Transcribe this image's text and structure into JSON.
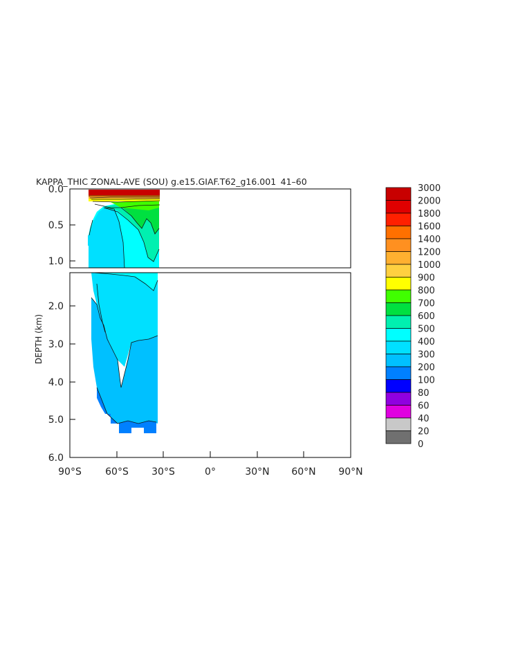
{
  "chart_data": {
    "type": "heatmap",
    "title": "KAPPA_THIC ZONAL-AVE (SOU) g.e15.GIAF.T62_g16.001  41–60 ",
    "ylabel": "DEPTH (km)",
    "xlabel": "",
    "x_ticks": [
      "90°S",
      "60°S",
      "30°S",
      "0°",
      "30°N",
      "60°N",
      "90°N"
    ],
    "y_ticks_upper": [
      "0.0",
      "0.5",
      "1.0"
    ],
    "y_ticks_lower": [
      "2.0",
      "3.0",
      "4.0",
      "5.0",
      "6.0"
    ],
    "xlim": [
      -90,
      90
    ],
    "ylim_upper": [
      0,
      1.1
    ],
    "ylim_lower": [
      1.1,
      6.0
    ],
    "data_extent_lat": [
      -78,
      -34
    ],
    "colorbar": {
      "levels": [
        "3000",
        "2000",
        "1800",
        "1600",
        "1400",
        "1200",
        "1000",
        "900",
        "800",
        "700",
        "600",
        "500",
        "400",
        "300",
        "200",
        "100",
        "80",
        "60",
        "40",
        "20",
        "0"
      ],
      "colors": [
        "#c80000",
        "#e00000",
        "#ff2000",
        "#ff7000",
        "#ff9020",
        "#ffb030",
        "#ffd040",
        "#ffff00",
        "#40ff00",
        "#00e040",
        "#00f0b0",
        "#00ffff",
        "#00e0ff",
        "#00c0ff",
        "#0080ff",
        "#0000ff",
        "#9000e0",
        "#e000e0",
        "#c8c8c8",
        "#707070"
      ]
    }
  }
}
